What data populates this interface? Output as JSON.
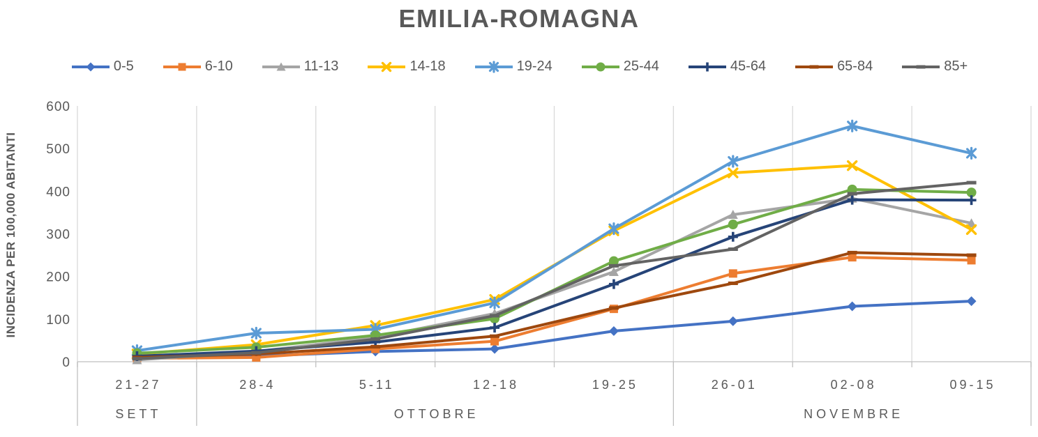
{
  "title": "EMILIA-ROMAGNA",
  "y_axis": {
    "title": "INCIDENZA PER 100,000 ABITANTI",
    "ticks": [
      0,
      100,
      200,
      300,
      400,
      500,
      600
    ]
  },
  "x_axis": {
    "groups": [
      {
        "label": "SETT",
        "span": 1
      },
      {
        "label": "OTTOBRE",
        "span": 4
      },
      {
        "label": "NOVEMBRE",
        "span": 3
      }
    ]
  },
  "colors": {
    "text": "#595959",
    "grid": "#D9D9D9",
    "axis": "#BFBFBF"
  },
  "chart_data": {
    "type": "line",
    "title": "EMILIA-ROMAGNA",
    "ylabel": "INCIDENZA PER 100,000 ABITANTI",
    "xlabel": "",
    "ylim": [
      0,
      600
    ],
    "grid": "vertical-only",
    "legend_position": "top",
    "categories": [
      "21-27",
      "28-4",
      "5-11",
      "12-18",
      "19-25",
      "26-01",
      "02-08",
      "09-15"
    ],
    "series": [
      {
        "name": "0-5",
        "color": "#4472C4",
        "marker": "diamond",
        "values": [
          10,
          13,
          24,
          30,
          72,
          95,
          130,
          142
        ]
      },
      {
        "name": "6-10",
        "color": "#ED7D31",
        "marker": "square",
        "values": [
          8,
          10,
          30,
          48,
          124,
          207,
          245,
          238
        ]
      },
      {
        "name": "11-13",
        "color": "#A5A5A5",
        "marker": "triangle",
        "values": [
          4,
          24,
          57,
          113,
          211,
          345,
          383,
          325
        ]
      },
      {
        "name": "14-18",
        "color": "#FFC000",
        "marker": "x",
        "values": [
          18,
          40,
          85,
          146,
          307,
          443,
          460,
          310
        ]
      },
      {
        "name": "19-24",
        "color": "#5B9BD5",
        "marker": "asterisk",
        "values": [
          26,
          67,
          76,
          138,
          312,
          470,
          553,
          489
        ]
      },
      {
        "name": "25-44",
        "color": "#70AD47",
        "marker": "circle",
        "values": [
          20,
          34,
          62,
          101,
          236,
          322,
          404,
          397
        ]
      },
      {
        "name": "45-64",
        "color": "#264478",
        "marker": "plus",
        "values": [
          13,
          25,
          46,
          80,
          182,
          293,
          380,
          379
        ]
      },
      {
        "name": "65-84",
        "color": "#9E480E",
        "marker": "dash",
        "values": [
          10,
          18,
          35,
          60,
          126,
          184,
          256,
          250
        ]
      },
      {
        "name": "85+",
        "color": "#636363",
        "marker": "dash",
        "values": [
          7,
          21,
          53,
          108,
          225,
          264,
          394,
          420
        ]
      }
    ]
  }
}
